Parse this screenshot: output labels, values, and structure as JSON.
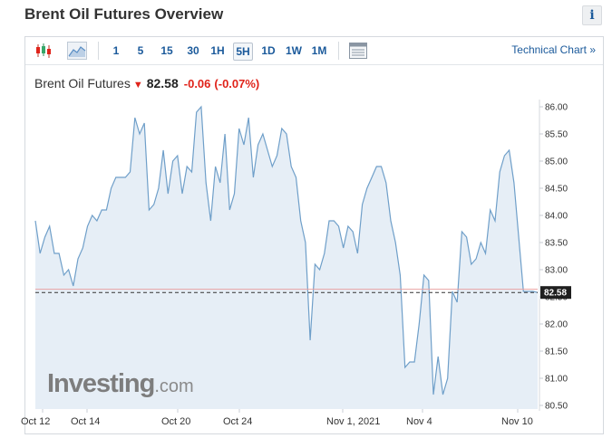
{
  "page": {
    "title": "Brent Oil Futures Overview",
    "info_label": "i"
  },
  "toolbar": {
    "icons": [
      "candlestick-icon",
      "area-chart-icon",
      "table-icon"
    ],
    "ranges": [
      "1",
      "5",
      "15",
      "30",
      "1H",
      "5H",
      "1D",
      "1W",
      "1M"
    ],
    "active_range": "5H",
    "technical_link": "Technical Chart »"
  },
  "quote": {
    "name": "Brent Oil Futures",
    "direction": "down",
    "price": "82.58",
    "change": "-0.06",
    "change_pct": "(-0.07%)"
  },
  "watermark": {
    "brand": "Investing",
    "suffix": ".com"
  },
  "colors": {
    "line": "#6f9fc9",
    "fill": "#e6eef6",
    "down": "#e0231a",
    "link": "#1b5a9b",
    "prev_close": "#e9a3a3"
  },
  "chart_data": {
    "type": "area",
    "y_ticks": [
      "86.00",
      "85.50",
      "85.00",
      "84.50",
      "84.00",
      "83.50",
      "83.00",
      "82.50",
      "82.00",
      "81.50",
      "81.00",
      "80.50"
    ],
    "ylim": [
      80.5,
      86.0
    ],
    "x_tick_labels": [
      "Oct 12",
      "Oct 14",
      "Oct 20",
      "Oct 24",
      "Nov 1, 2021",
      "Nov 4",
      "Nov 10"
    ],
    "current_price_label": "82.58",
    "current_price": 82.58,
    "previous_close": 82.64,
    "grid": false,
    "values": [
      83.9,
      83.3,
      83.6,
      83.8,
      83.3,
      83.3,
      82.9,
      83.0,
      82.7,
      83.2,
      83.4,
      83.8,
      84.0,
      83.9,
      84.1,
      84.1,
      84.5,
      84.7,
      84.7,
      84.7,
      84.8,
      85.8,
      85.5,
      85.7,
      84.1,
      84.2,
      84.5,
      85.2,
      84.4,
      85.0,
      85.1,
      84.4,
      84.9,
      84.8,
      85.9,
      86.0,
      84.6,
      83.9,
      84.9,
      84.6,
      85.5,
      84.1,
      84.4,
      85.6,
      85.3,
      85.8,
      84.7,
      85.3,
      85.5,
      85.2,
      84.9,
      85.1,
      85.6,
      85.5,
      84.9,
      84.7,
      83.9,
      83.5,
      81.7,
      83.1,
      83.0,
      83.3,
      83.9,
      83.9,
      83.8,
      83.4,
      83.8,
      83.7,
      83.3,
      84.2,
      84.5,
      84.7,
      84.9,
      84.9,
      84.6,
      83.9,
      83.5,
      82.9,
      81.2,
      81.3,
      81.3,
      82.0,
      82.9,
      82.8,
      80.7,
      81.4,
      80.7,
      81.0,
      82.6,
      82.4,
      83.7,
      83.6,
      83.1,
      83.2,
      83.5,
      83.3,
      84.1,
      83.9,
      84.8,
      85.1,
      85.2,
      84.6,
      83.6,
      82.6,
      82.6,
      82.6,
      82.58
    ]
  }
}
